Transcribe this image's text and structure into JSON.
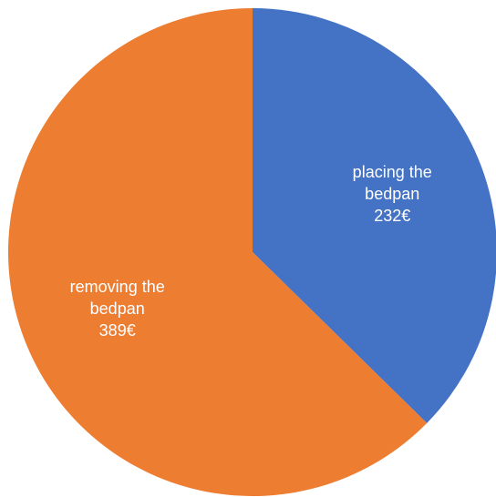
{
  "chart_data": {
    "type": "pie",
    "title": "",
    "slices": [
      {
        "label_line1": "placing the",
        "label_line2": "bedpan",
        "value": 232,
        "value_label": "232€",
        "color": "#4472C4"
      },
      {
        "label_line1": "removing the",
        "label_line2": "bedpan",
        "value": 389,
        "value_label": "389€",
        "color": "#ED7D31"
      }
    ],
    "start_angle_deg": 0,
    "direction": "clockwise",
    "legend": "none"
  }
}
